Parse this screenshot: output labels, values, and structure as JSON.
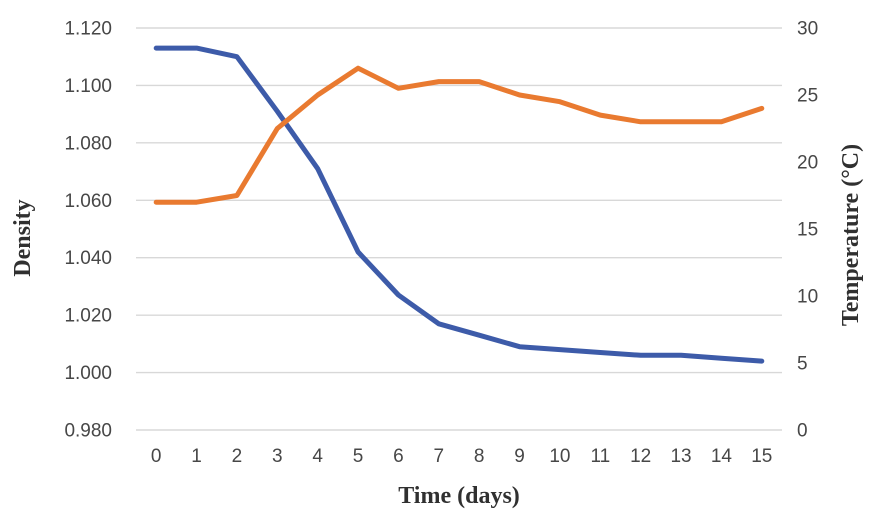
{
  "figure": {
    "background": "#ffffff",
    "gridline_color": "#d8d8d8"
  },
  "chart_data": {
    "type": "line",
    "title": "",
    "xlabel": "Time (days)",
    "x": [
      0,
      1,
      2,
      3,
      4,
      5,
      6,
      7,
      8,
      9,
      10,
      11,
      12,
      13,
      14,
      15
    ],
    "x_tick_labels": [
      "0",
      "1",
      "2",
      "3",
      "4",
      "5",
      "6",
      "7",
      "8",
      "9",
      "10",
      "11",
      "12",
      "13",
      "14",
      "15"
    ],
    "left_axis": {
      "label": "Density",
      "min": 0.98,
      "max": 1.12,
      "ticks": [
        "0.980",
        "1.000",
        "1.020",
        "1.040",
        "1.060",
        "1.080",
        "1.100",
        "1.120"
      ]
    },
    "right_axis": {
      "label": "Temperature (°C)",
      "min": 0,
      "max": 30,
      "ticks": [
        "0",
        "5",
        "10",
        "15",
        "20",
        "25",
        "30"
      ]
    },
    "grid": "horizontal-only",
    "legend": "none",
    "series": [
      {
        "name": "Density",
        "axis": "left",
        "color": "#3d5ba9",
        "values": [
          1.113,
          1.113,
          1.11,
          1.091,
          1.071,
          1.042,
          1.027,
          1.017,
          1.013,
          1.009,
          1.008,
          1.007,
          1.006,
          1.006,
          1.005,
          1.004
        ]
      },
      {
        "name": "Temperature",
        "axis": "right",
        "color": "#e97a30",
        "values": [
          17,
          17,
          17.5,
          22.5,
          25,
          27,
          25.5,
          26,
          26,
          25,
          24.5,
          23.5,
          23,
          23,
          23,
          24
        ]
      }
    ]
  }
}
